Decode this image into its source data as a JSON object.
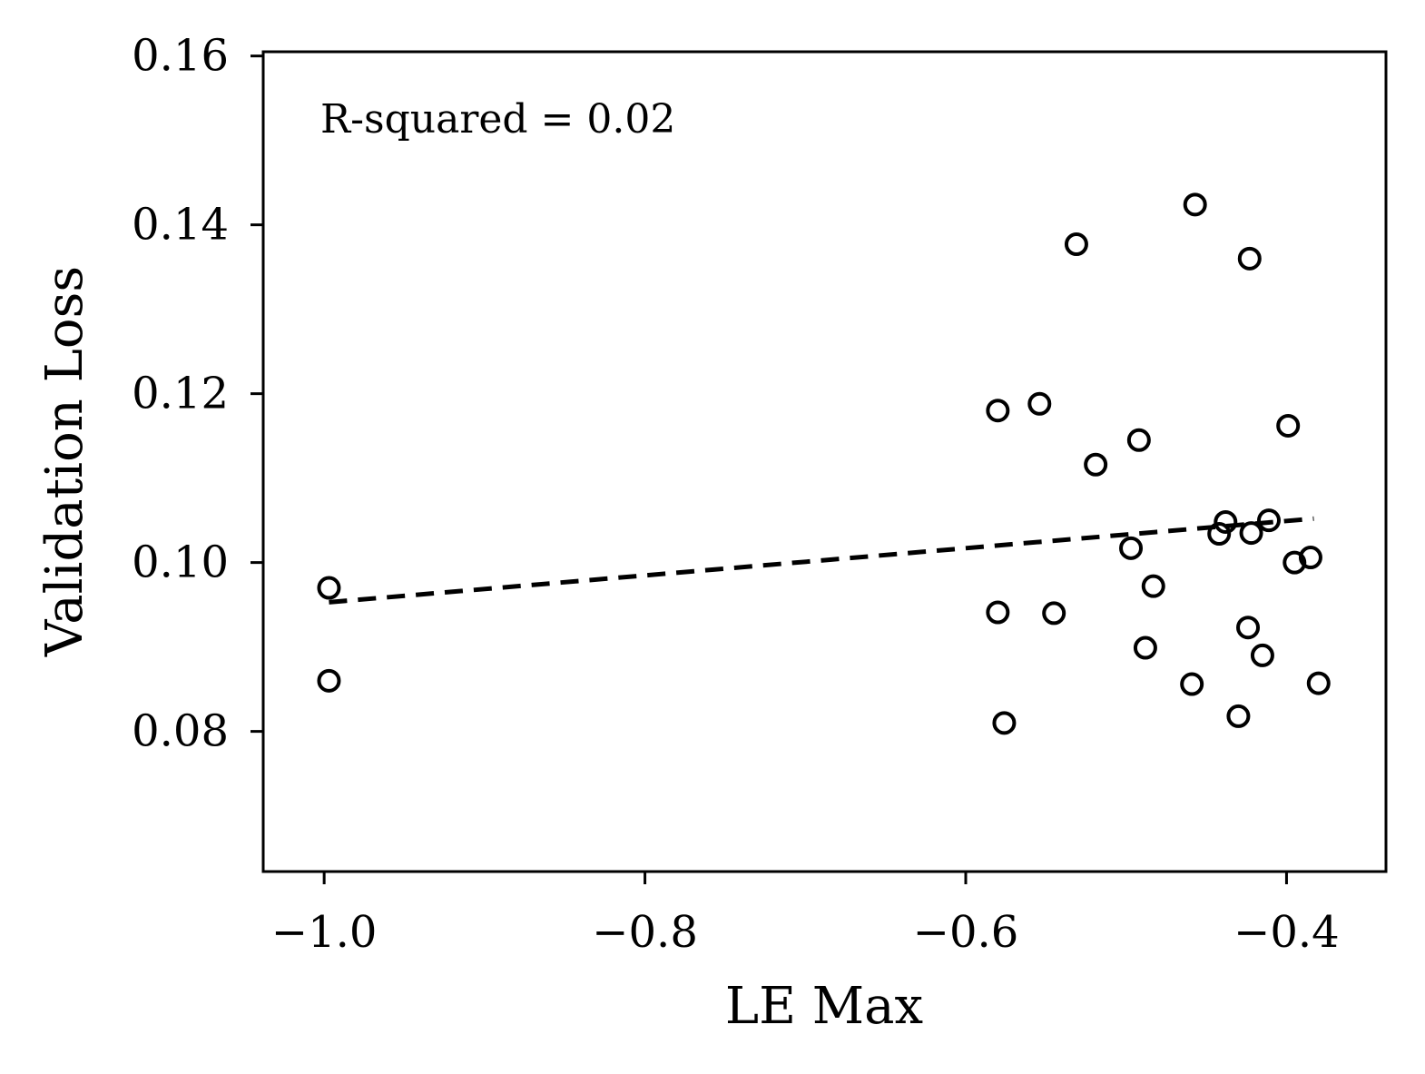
{
  "chart_data": {
    "type": "scatter",
    "xlabel": "LE Max",
    "ylabel": "Validation Loss",
    "annotation": "R-squared = 0.02",
    "xlim": [
      -1.038,
      -0.338
    ],
    "ylim": [
      0.0634,
      0.1605
    ],
    "x_ticks": [
      -1.0,
      -0.8,
      -0.6,
      -0.4
    ],
    "x_tick_labels": [
      "−1.0",
      "−0.8",
      "−0.6",
      "−0.4"
    ],
    "y_ticks": [
      0.08,
      0.1,
      0.12,
      0.14,
      0.16
    ],
    "y_tick_labels": [
      "0.08",
      "0.10",
      "0.12",
      "0.14",
      "0.16"
    ],
    "grid": false,
    "marker": "open-circle",
    "points": [
      {
        "x": -0.997,
        "y": 0.097
      },
      {
        "x": -0.997,
        "y": 0.086
      },
      {
        "x": -0.58,
        "y": 0.118
      },
      {
        "x": -0.58,
        "y": 0.0941
      },
      {
        "x": -0.576,
        "y": 0.081
      },
      {
        "x": -0.554,
        "y": 0.1188
      },
      {
        "x": -0.545,
        "y": 0.094
      },
      {
        "x": -0.531,
        "y": 0.1377
      },
      {
        "x": -0.519,
        "y": 0.1116
      },
      {
        "x": -0.497,
        "y": 0.1017
      },
      {
        "x": -0.492,
        "y": 0.1145
      },
      {
        "x": -0.488,
        "y": 0.0899
      },
      {
        "x": -0.483,
        "y": 0.0972
      },
      {
        "x": -0.459,
        "y": 0.0856
      },
      {
        "x": -0.457,
        "y": 0.1424
      },
      {
        "x": -0.442,
        "y": 0.1034
      },
      {
        "x": -0.438,
        "y": 0.1048
      },
      {
        "x": -0.43,
        "y": 0.0818
      },
      {
        "x": -0.424,
        "y": 0.0923
      },
      {
        "x": -0.422,
        "y": 0.1035
      },
      {
        "x": -0.423,
        "y": 0.136
      },
      {
        "x": -0.415,
        "y": 0.089
      },
      {
        "x": -0.411,
        "y": 0.105
      },
      {
        "x": -0.399,
        "y": 0.1162
      },
      {
        "x": -0.395,
        "y": 0.1
      },
      {
        "x": -0.385,
        "y": 0.1006
      },
      {
        "x": -0.38,
        "y": 0.0857
      }
    ],
    "fit_line": {
      "style": "dashed",
      "x": [
        -0.997,
        -0.383
      ],
      "y": [
        0.0953,
        0.1052
      ]
    }
  }
}
